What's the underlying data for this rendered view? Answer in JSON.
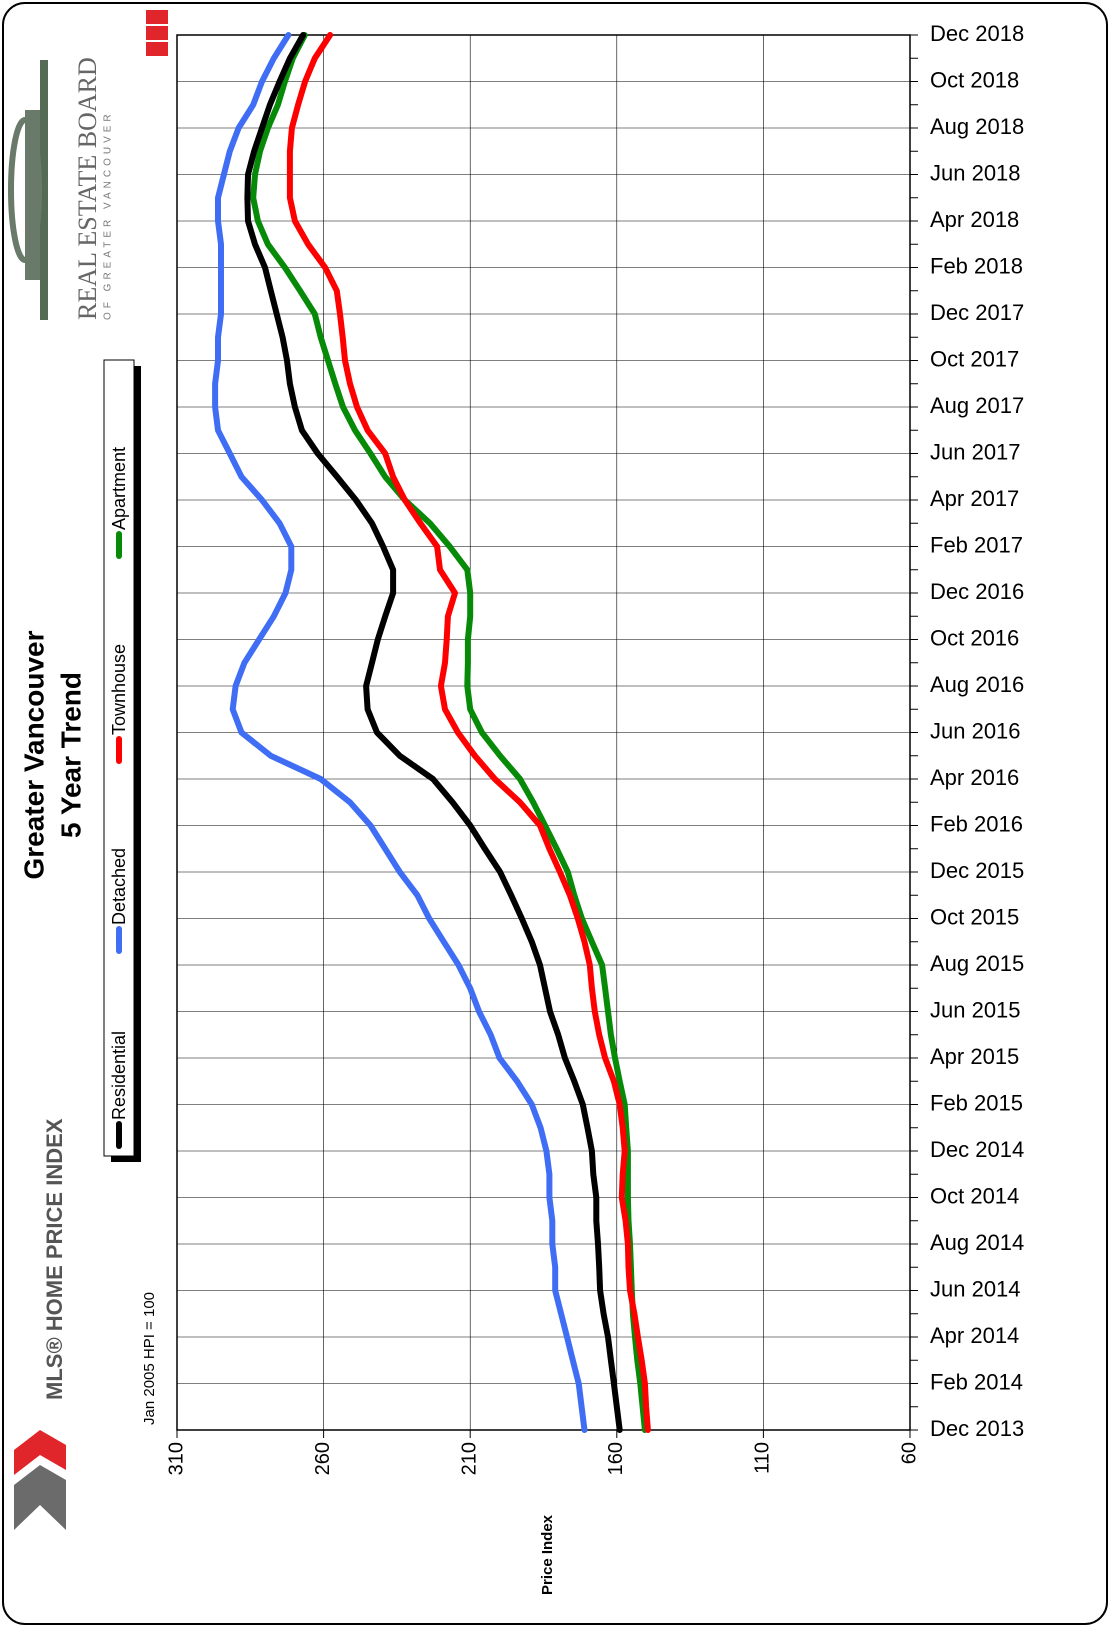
{
  "chart_data": {
    "type": "line",
    "title": "Greater Vancouver",
    "subtitle": "5 Year Trend",
    "annotation": "Jan 2005 HPI = 100",
    "ylabel": "Price Index",
    "categories": [
      "Dec 2013",
      null,
      "Feb 2014",
      null,
      "Apr 2014",
      null,
      "Jun 2014",
      null,
      "Aug 2014",
      null,
      "Oct 2014",
      null,
      "Dec 2014",
      null,
      "Feb 2015",
      null,
      "Apr 2015",
      null,
      "Jun 2015",
      null,
      "Aug 2015",
      null,
      "Oct 2015",
      null,
      "Dec 2015",
      null,
      "Feb 2016",
      null,
      "Apr 2016",
      null,
      "Jun 2016",
      null,
      "Aug 2016",
      null,
      "Oct 2016",
      null,
      "Dec 2016",
      null,
      "Feb 2017",
      null,
      "Apr 2017",
      null,
      "Jun 2017",
      null,
      "Aug 2017",
      null,
      "Oct 2017",
      null,
      "Dec 2017",
      null,
      "Feb 2018",
      null,
      "Apr 2018",
      null,
      "Jun 2018",
      null,
      "Aug 2018",
      null,
      "Oct 2018",
      null,
      "Dec 2018"
    ],
    "series": [
      {
        "name": "Residential",
        "color": "#000000",
        "values": [
          159,
          160,
          161,
          162,
          163,
          164.5,
          165.7,
          166,
          166.4,
          167,
          167,
          168,
          168.5,
          170,
          171.6,
          174.5,
          177.7,
          180,
          182.8,
          184.5,
          186.2,
          189,
          192.4,
          196,
          199.8,
          205,
          210,
          216,
          222.7,
          234,
          241.8,
          245,
          245.5,
          243.5,
          241.5,
          239,
          236.3,
          236.3,
          239.7,
          243.5,
          249,
          255.4,
          262,
          267.4,
          269.8,
          271.5,
          272.5,
          274,
          276,
          278,
          280,
          283.4,
          285.8,
          286,
          285.8,
          283.7,
          281,
          278.3,
          275,
          271.5,
          267
        ]
      },
      {
        "name": "Detached",
        "color": "#3f6ef5",
        "values": [
          171,
          172,
          173,
          175,
          177,
          179,
          181,
          181,
          182,
          182,
          183,
          183,
          184,
          186,
          189,
          194,
          200,
          203,
          207,
          210,
          214,
          219,
          224,
          228,
          234,
          239,
          244,
          251,
          261,
          278,
          288,
          291,
          290,
          287,
          282,
          277,
          273,
          271,
          271,
          275,
          281,
          288,
          292,
          296,
          297,
          297,
          296,
          296,
          295,
          295,
          295,
          295,
          296,
          296,
          294,
          292,
          289,
          284,
          281,
          277,
          272
        ]
      },
      {
        "name": "Townhouse",
        "color": "#ff0000",
        "values": [
          149.4,
          150,
          150.4,
          151.5,
          152.8,
          154,
          155.5,
          156,
          156.2,
          157,
          158.3,
          158,
          157.3,
          158,
          159,
          161,
          164,
          166,
          167.5,
          168.5,
          169.2,
          171,
          173.3,
          176,
          179.4,
          183,
          186.2,
          193,
          201.6,
          208.4,
          214.2,
          218.6,
          220,
          218.6,
          218,
          217.6,
          215.2,
          220.3,
          221.3,
          227,
          232.3,
          236.3,
          239,
          245,
          248.6,
          251,
          252.7,
          253.5,
          254.4,
          255.5,
          259.5,
          265.3,
          269.8,
          271.5,
          271.5,
          271.5,
          270.8,
          268.7,
          266.3,
          263,
          257.8
        ]
      },
      {
        "name": "Apartment",
        "color": "#078a07",
        "values": [
          150.4,
          151.2,
          152,
          153,
          153.8,
          154.5,
          154.9,
          155.2,
          155.5,
          156,
          156.2,
          156.2,
          156.2,
          156.8,
          157.3,
          159,
          160.6,
          162,
          163,
          164,
          165,
          168.5,
          171.9,
          174.5,
          176.7,
          180.5,
          184.5,
          188.5,
          193,
          199.8,
          206,
          210,
          211,
          210.8,
          210.8,
          210,
          210,
          211,
          217,
          223.7,
          232.3,
          239,
          244,
          249.3,
          253.4,
          256,
          258.5,
          261,
          263,
          268,
          273.2,
          279,
          282.4,
          284,
          283.4,
          281.7,
          279,
          275.6,
          273.2,
          270.5,
          266.4
        ]
      }
    ],
    "ylim": [
      60,
      310
    ],
    "yticks": [
      310,
      260,
      210,
      160,
      110,
      60
    ],
    "grid": true
  },
  "branding": {
    "hpi": "MLS® HOME PRICE INDEX",
    "board": "REAL ESTATE BOARD",
    "board_sub": "OF GREATER VANCOUVER"
  }
}
